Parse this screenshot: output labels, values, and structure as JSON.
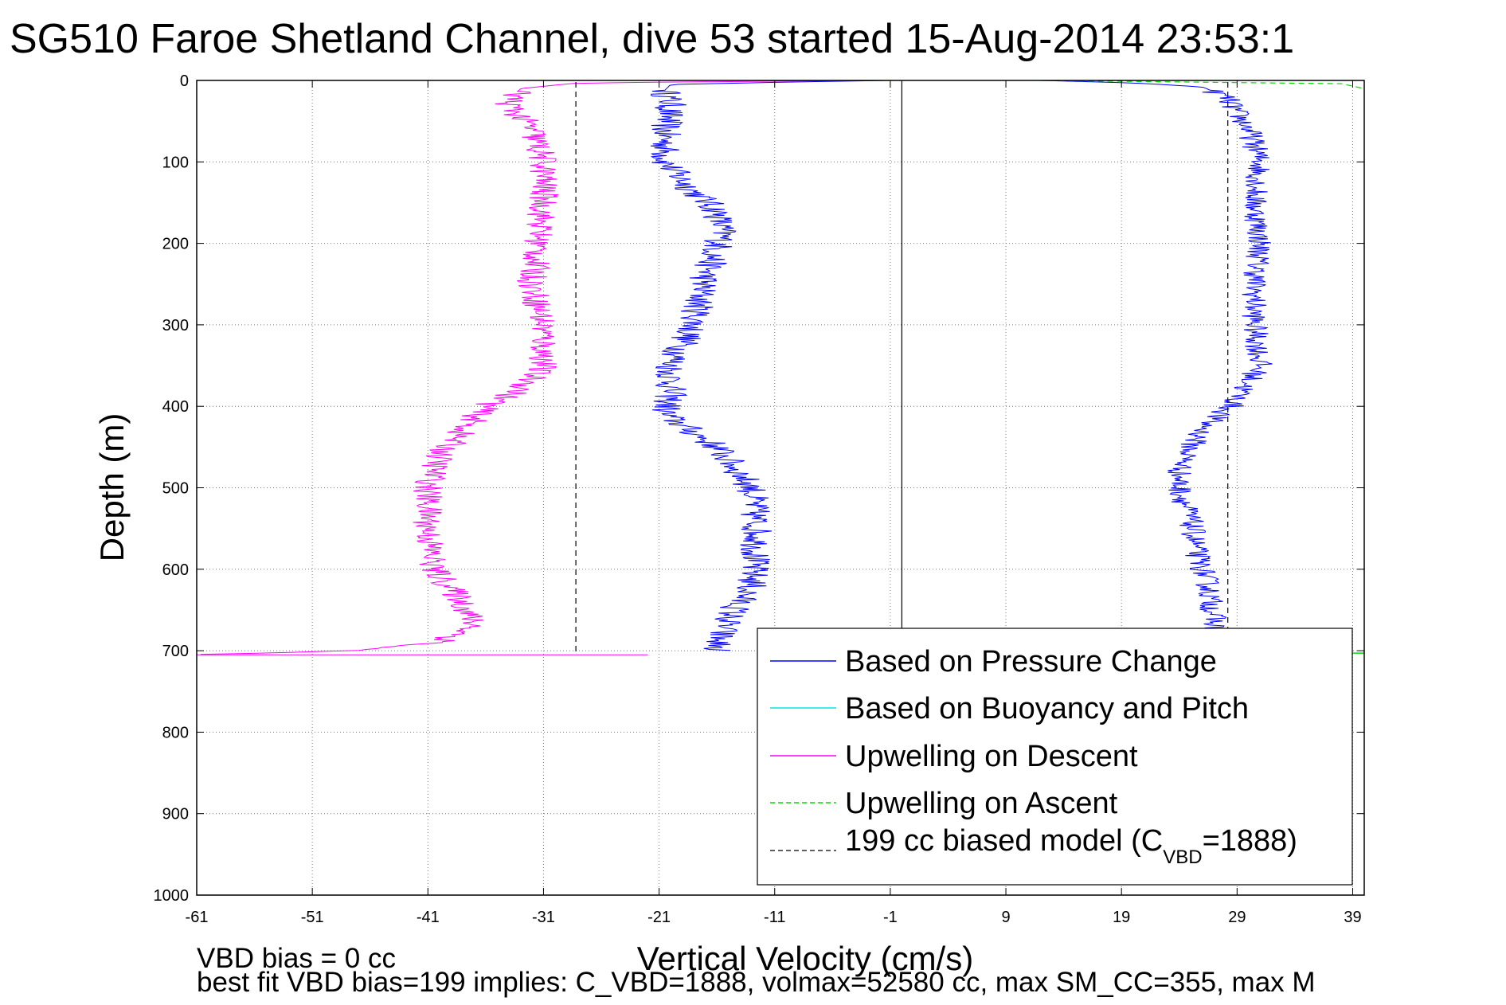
{
  "chart_data": {
    "type": "line",
    "title": "SG510 Faroe Shetland Channel, dive 53 started 15-Aug-2014 23:53:1",
    "xlabel": "Vertical Velocity (cm/s)",
    "ylabel": "Depth (m)",
    "xlim": [
      -61,
      40
    ],
    "ylim": [
      0,
      1000
    ],
    "y_reversed": true,
    "grid": true,
    "x_ticks": [
      "-61",
      "-51",
      "-41",
      "-31",
      "-21",
      "-11",
      "-1",
      "9",
      "19",
      "29",
      "39"
    ],
    "y_ticks": [
      "0",
      "100",
      "200",
      "300",
      "400",
      "500",
      "600",
      "700",
      "800",
      "900",
      "1000"
    ],
    "legend": {
      "position": "bottom-right",
      "entries": [
        {
          "label": "Based on Pressure Change",
          "color": "#0000ff",
          "style": "solid"
        },
        {
          "label": "Based on Buoyancy and Pitch",
          "color": "#00e5e5",
          "style": "solid"
        },
        {
          "label": "Upwelling on Descent",
          "color": "#ff00ff",
          "style": "solid"
        },
        {
          "label": "Upwelling on Ascent",
          "color": "#00dd00",
          "style": "dashed"
        },
        {
          "label_main": "199 cc biased model (C",
          "label_sub": "VBD",
          "label_tail": "=1888)",
          "color": "#000000",
          "style": "dashed"
        }
      ]
    },
    "series": [
      {
        "key": "pressure_descent",
        "color": "#0000ff",
        "style": "solid",
        "noise": 1.4,
        "depth": [
          0,
          2,
          5,
          12,
          30,
          60,
          100,
          130,
          160,
          190,
          240,
          300,
          350,
          385,
          410,
          450,
          500,
          560,
          620,
          660,
          690,
          700
        ],
        "velocity": [
          -1,
          -10,
          -20,
          -20.5,
          -20,
          -20.5,
          -20.5,
          -18.5,
          -16,
          -15.5,
          -17,
          -18,
          -20,
          -20,
          -20.5,
          -16,
          -13,
          -12.5,
          -13,
          -15,
          -16,
          -16
        ]
      },
      {
        "key": "pressure_ascent",
        "color": "#0000ff",
        "style": "solid",
        "noise": 1.1,
        "depth": [
          0,
          3,
          8,
          20,
          60,
          100,
          150,
          200,
          250,
          300,
          350,
          400,
          420,
          450,
          480,
          500,
          540,
          580,
          620,
          660,
          680
        ],
        "velocity": [
          12,
          20,
          26,
          28,
          30,
          31,
          30.5,
          31,
          30.5,
          30.5,
          31,
          28.5,
          26.5,
          25,
          24,
          24,
          25,
          25.5,
          26.5,
          27,
          27
        ]
      },
      {
        "key": "upwelling_descent",
        "color": "#ff00ff",
        "style": "solid",
        "noise": 1.3,
        "depth": [
          0,
          3,
          10,
          30,
          60,
          100,
          150,
          200,
          250,
          300,
          350,
          380,
          400,
          430,
          460,
          500,
          550,
          600,
          640,
          670,
          690,
          700,
          705
        ],
        "velocity": [
          -3,
          -28,
          -33,
          -34,
          -32,
          -31,
          -31,
          -31.5,
          -32,
          -31,
          -31,
          -33,
          -36,
          -38,
          -40,
          -41,
          -41,
          -40.5,
          -38,
          -37,
          -40,
          -48,
          -61
        ]
      },
      {
        "key": "upwelling_ascent",
        "color": "#00dd00",
        "style": "dashed",
        "noise": 0,
        "depth": [
          0,
          4,
          10
        ],
        "velocity": [
          12,
          38,
          40
        ]
      },
      {
        "key": "model",
        "color": "#000000",
        "style": "dashed",
        "noise": 0,
        "depth": [
          2,
          705
        ],
        "velocity": [
          -28.2,
          -28.2
        ]
      },
      {
        "key": "model_ascent",
        "color": "#000000",
        "style": "dashed",
        "noise": 0,
        "depth": [
          2,
          705
        ],
        "velocity": [
          28.2,
          28.2
        ]
      }
    ],
    "annotations": {
      "footer_line1": "VBD bias = 0 cc",
      "footer_line2": "best fit VBD bias=199 implies: C_VBD=1888, volmax=52580 cc, max SM_CC=355, max M"
    }
  }
}
